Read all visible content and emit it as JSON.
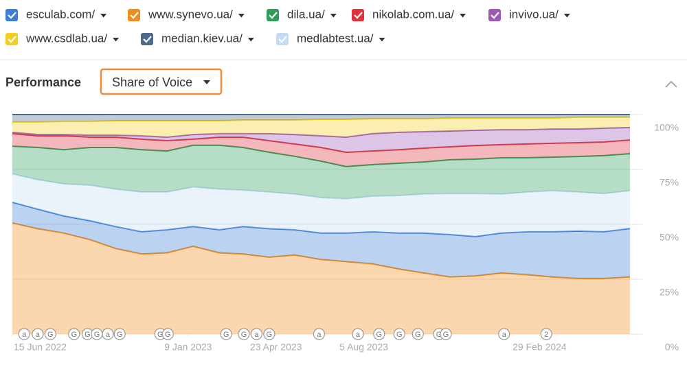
{
  "panel": {
    "title": "Performance",
    "dropdown": "Share of Voice"
  },
  "chart_data": {
    "type": "stacked-area",
    "x": [
      "2022-06-15",
      "2022-07-15",
      "2022-08-15",
      "2022-09-15",
      "2022-10-15",
      "2022-11-15",
      "2022-12-15",
      "2023-01-15",
      "2023-02-15",
      "2023-03-15",
      "2023-04-15",
      "2023-05-15",
      "2023-06-15",
      "2023-07-15",
      "2023-08-15",
      "2023-09-15",
      "2023-10-15",
      "2023-11-15",
      "2023-12-15",
      "2024-01-15",
      "2024-02-15",
      "2024-03-15",
      "2024-04-15",
      "2024-05-15",
      "2024-06-15"
    ],
    "series": [
      {
        "name": "www.synevo.ua/",
        "color": "#f08c1a",
        "values": [
          50.6,
          48,
          46,
          43,
          39,
          36.5,
          37,
          40,
          37,
          36.5,
          35,
          36,
          34,
          33,
          32,
          29.7,
          27.8,
          26,
          26.5,
          27.8,
          27,
          26,
          25.3,
          25.3,
          26
        ]
      },
      {
        "name": "esculab.com/",
        "color": "#3b7dd8",
        "values": [
          9.4,
          8.9,
          7.8,
          8.6,
          10,
          10.1,
          10.5,
          9,
          10.5,
          12.5,
          13,
          11.5,
          12,
          13,
          14.6,
          16.3,
          18.2,
          19.3,
          17.9,
          18.2,
          19.6,
          20.6,
          21.6,
          21.3,
          22.1
        ]
      },
      {
        "name": "medlabtest.ua/",
        "color": "#c3dcf2",
        "values": [
          13,
          13.4,
          14.6,
          16.2,
          17,
          18.1,
          17.2,
          18,
          18.5,
          16.6,
          16.7,
          16.3,
          16.2,
          15.6,
          16.2,
          17.1,
          17.8,
          18.7,
          19.6,
          17.8,
          18.1,
          18.7,
          17.8,
          17.4,
          17.2
        ]
      },
      {
        "name": "dila.ua/",
        "color": "#2e9d58",
        "values": [
          12.6,
          14.7,
          15.6,
          17.2,
          19,
          19.3,
          18.7,
          19,
          20,
          19.4,
          18.1,
          17.2,
          16.6,
          14.7,
          14.4,
          14.7,
          14.6,
          15.4,
          15.7,
          16.5,
          15.6,
          15.3,
          16.2,
          17.3,
          16.9
        ]
      },
      {
        "name": "nikolab.com.ua/",
        "color": "#e0323c",
        "values": [
          5.7,
          5.3,
          6.3,
          4.7,
          4.7,
          4.8,
          4.7,
          2.8,
          3.7,
          4.7,
          5.3,
          5.6,
          6.2,
          6.5,
          6.2,
          6.2,
          6.3,
          5.9,
          6.2,
          6,
          6.3,
          6.3,
          6.3,
          6.2,
          6.2
        ]
      },
      {
        "name": "invivo.ua/",
        "color": "#9b59b6",
        "values": [
          0.6,
          0.6,
          0.6,
          0.9,
          0.9,
          1.5,
          1.6,
          2.1,
          1.6,
          1.6,
          3.2,
          4.3,
          5.3,
          6.9,
          7.9,
          7.9,
          7.5,
          7.2,
          6.9,
          6.8,
          6.5,
          6.5,
          6.2,
          6.3,
          5.7
        ]
      },
      {
        "name": "www.csdlab.ua/",
        "color": "#f2cf1f",
        "values": [
          4.7,
          5.7,
          6,
          6.3,
          6.6,
          6.9,
          7.5,
          6.3,
          5.9,
          6.2,
          6.2,
          6.6,
          7.5,
          8.1,
          6.8,
          6.2,
          5.9,
          5.9,
          5.6,
          5.3,
          5.3,
          5,
          5.4,
          5,
          4.7
        ]
      },
      {
        "name": "median.kiev.ua/",
        "color": "#4e6a8a",
        "values": [
          3.4,
          3.4,
          3.1,
          3.1,
          2.8,
          2.8,
          2.8,
          2.8,
          2.8,
          2.5,
          2.5,
          2.5,
          2.2,
          2.2,
          1.9,
          1.9,
          1.9,
          1.6,
          1.6,
          1.6,
          1.6,
          1.6,
          1.2,
          1.2,
          1.2
        ]
      }
    ],
    "xlim": [
      "2022-06-15",
      "2024-06-15"
    ],
    "xticks": [
      {
        "value": "2022-06-15",
        "label": "15 Jun 2022"
      },
      {
        "value": "2023-01-09",
        "label": "9 Jan 2023"
      },
      {
        "value": "2023-04-23",
        "label": "23 Apr 2023"
      },
      {
        "value": "2023-08-05",
        "label": "5 Aug 2023"
      },
      {
        "value": "2024-02-29",
        "label": "29 Feb 2024"
      }
    ],
    "ylim": [
      0,
      100
    ],
    "yticks": [
      {
        "value": 0,
        "label": "0%"
      },
      {
        "value": 25,
        "label": "25%"
      },
      {
        "value": 50,
        "label": "50%"
      },
      {
        "value": 75,
        "label": "75%"
      },
      {
        "value": 100,
        "label": "100%"
      }
    ],
    "grid": true,
    "events": [
      {
        "date": "2022-06-29",
        "label": "a"
      },
      {
        "date": "2022-07-15",
        "label": "a"
      },
      {
        "date": "2022-07-30",
        "label": "G"
      },
      {
        "date": "2022-08-27",
        "label": "G"
      },
      {
        "date": "2022-09-12",
        "label": "G"
      },
      {
        "date": "2022-09-23",
        "label": "G"
      },
      {
        "date": "2022-10-06",
        "label": "a"
      },
      {
        "date": "2022-10-20",
        "label": "G"
      },
      {
        "date": "2022-12-07",
        "label": "G"
      },
      {
        "date": "2022-12-16",
        "label": "G"
      },
      {
        "date": "2023-02-23",
        "label": "G"
      },
      {
        "date": "2023-03-16",
        "label": "G"
      },
      {
        "date": "2023-03-31",
        "label": "a"
      },
      {
        "date": "2023-04-15",
        "label": "G"
      },
      {
        "date": "2023-06-13",
        "label": "a"
      },
      {
        "date": "2023-07-29",
        "label": "a"
      },
      {
        "date": "2023-08-23",
        "label": "G"
      },
      {
        "date": "2023-09-16",
        "label": "G"
      },
      {
        "date": "2023-10-08",
        "label": "G"
      },
      {
        "date": "2023-11-02",
        "label": "G"
      },
      {
        "date": "2023-11-10",
        "label": "G"
      },
      {
        "date": "2024-01-18",
        "label": "a"
      },
      {
        "date": "2024-03-08",
        "label": "2"
      }
    ]
  }
}
